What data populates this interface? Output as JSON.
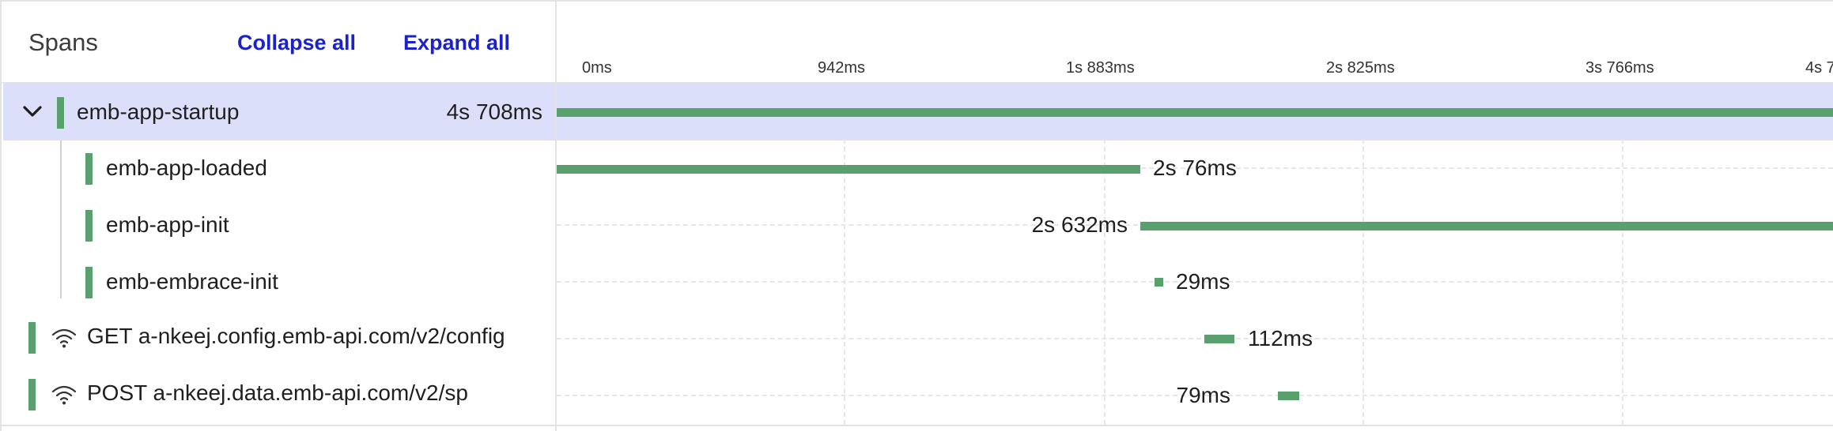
{
  "header": {
    "title": "Spans",
    "collapse_all": "Collapse all",
    "expand_all": "Expand all"
  },
  "timeline": {
    "ticks": [
      "0ms",
      "942ms",
      "1s 883ms",
      "2s 825ms",
      "3s 766ms",
      "4s 7"
    ]
  },
  "colors": {
    "bar": "#5aa06f",
    "highlight": "#dcdffa",
    "link": "#1a22c8"
  },
  "spans": [
    {
      "name": "emb-app-startup",
      "duration": "4s 708ms",
      "icon": "chevron-down-icon",
      "expanded": true,
      "selected": true
    },
    {
      "name": "emb-app-loaded",
      "duration": "2s 76ms"
    },
    {
      "name": "emb-app-init",
      "duration": "2s 632ms"
    },
    {
      "name": "emb-embrace-init",
      "duration": "29ms"
    },
    {
      "name": "GET a-nkeej.config.emb-api.com/v2/config",
      "duration": "112ms",
      "icon": "wifi-icon"
    },
    {
      "name": "POST a-nkeej.data.emb-api.com/v2/sp",
      "duration": "79ms",
      "icon": "wifi-icon"
    }
  ]
}
